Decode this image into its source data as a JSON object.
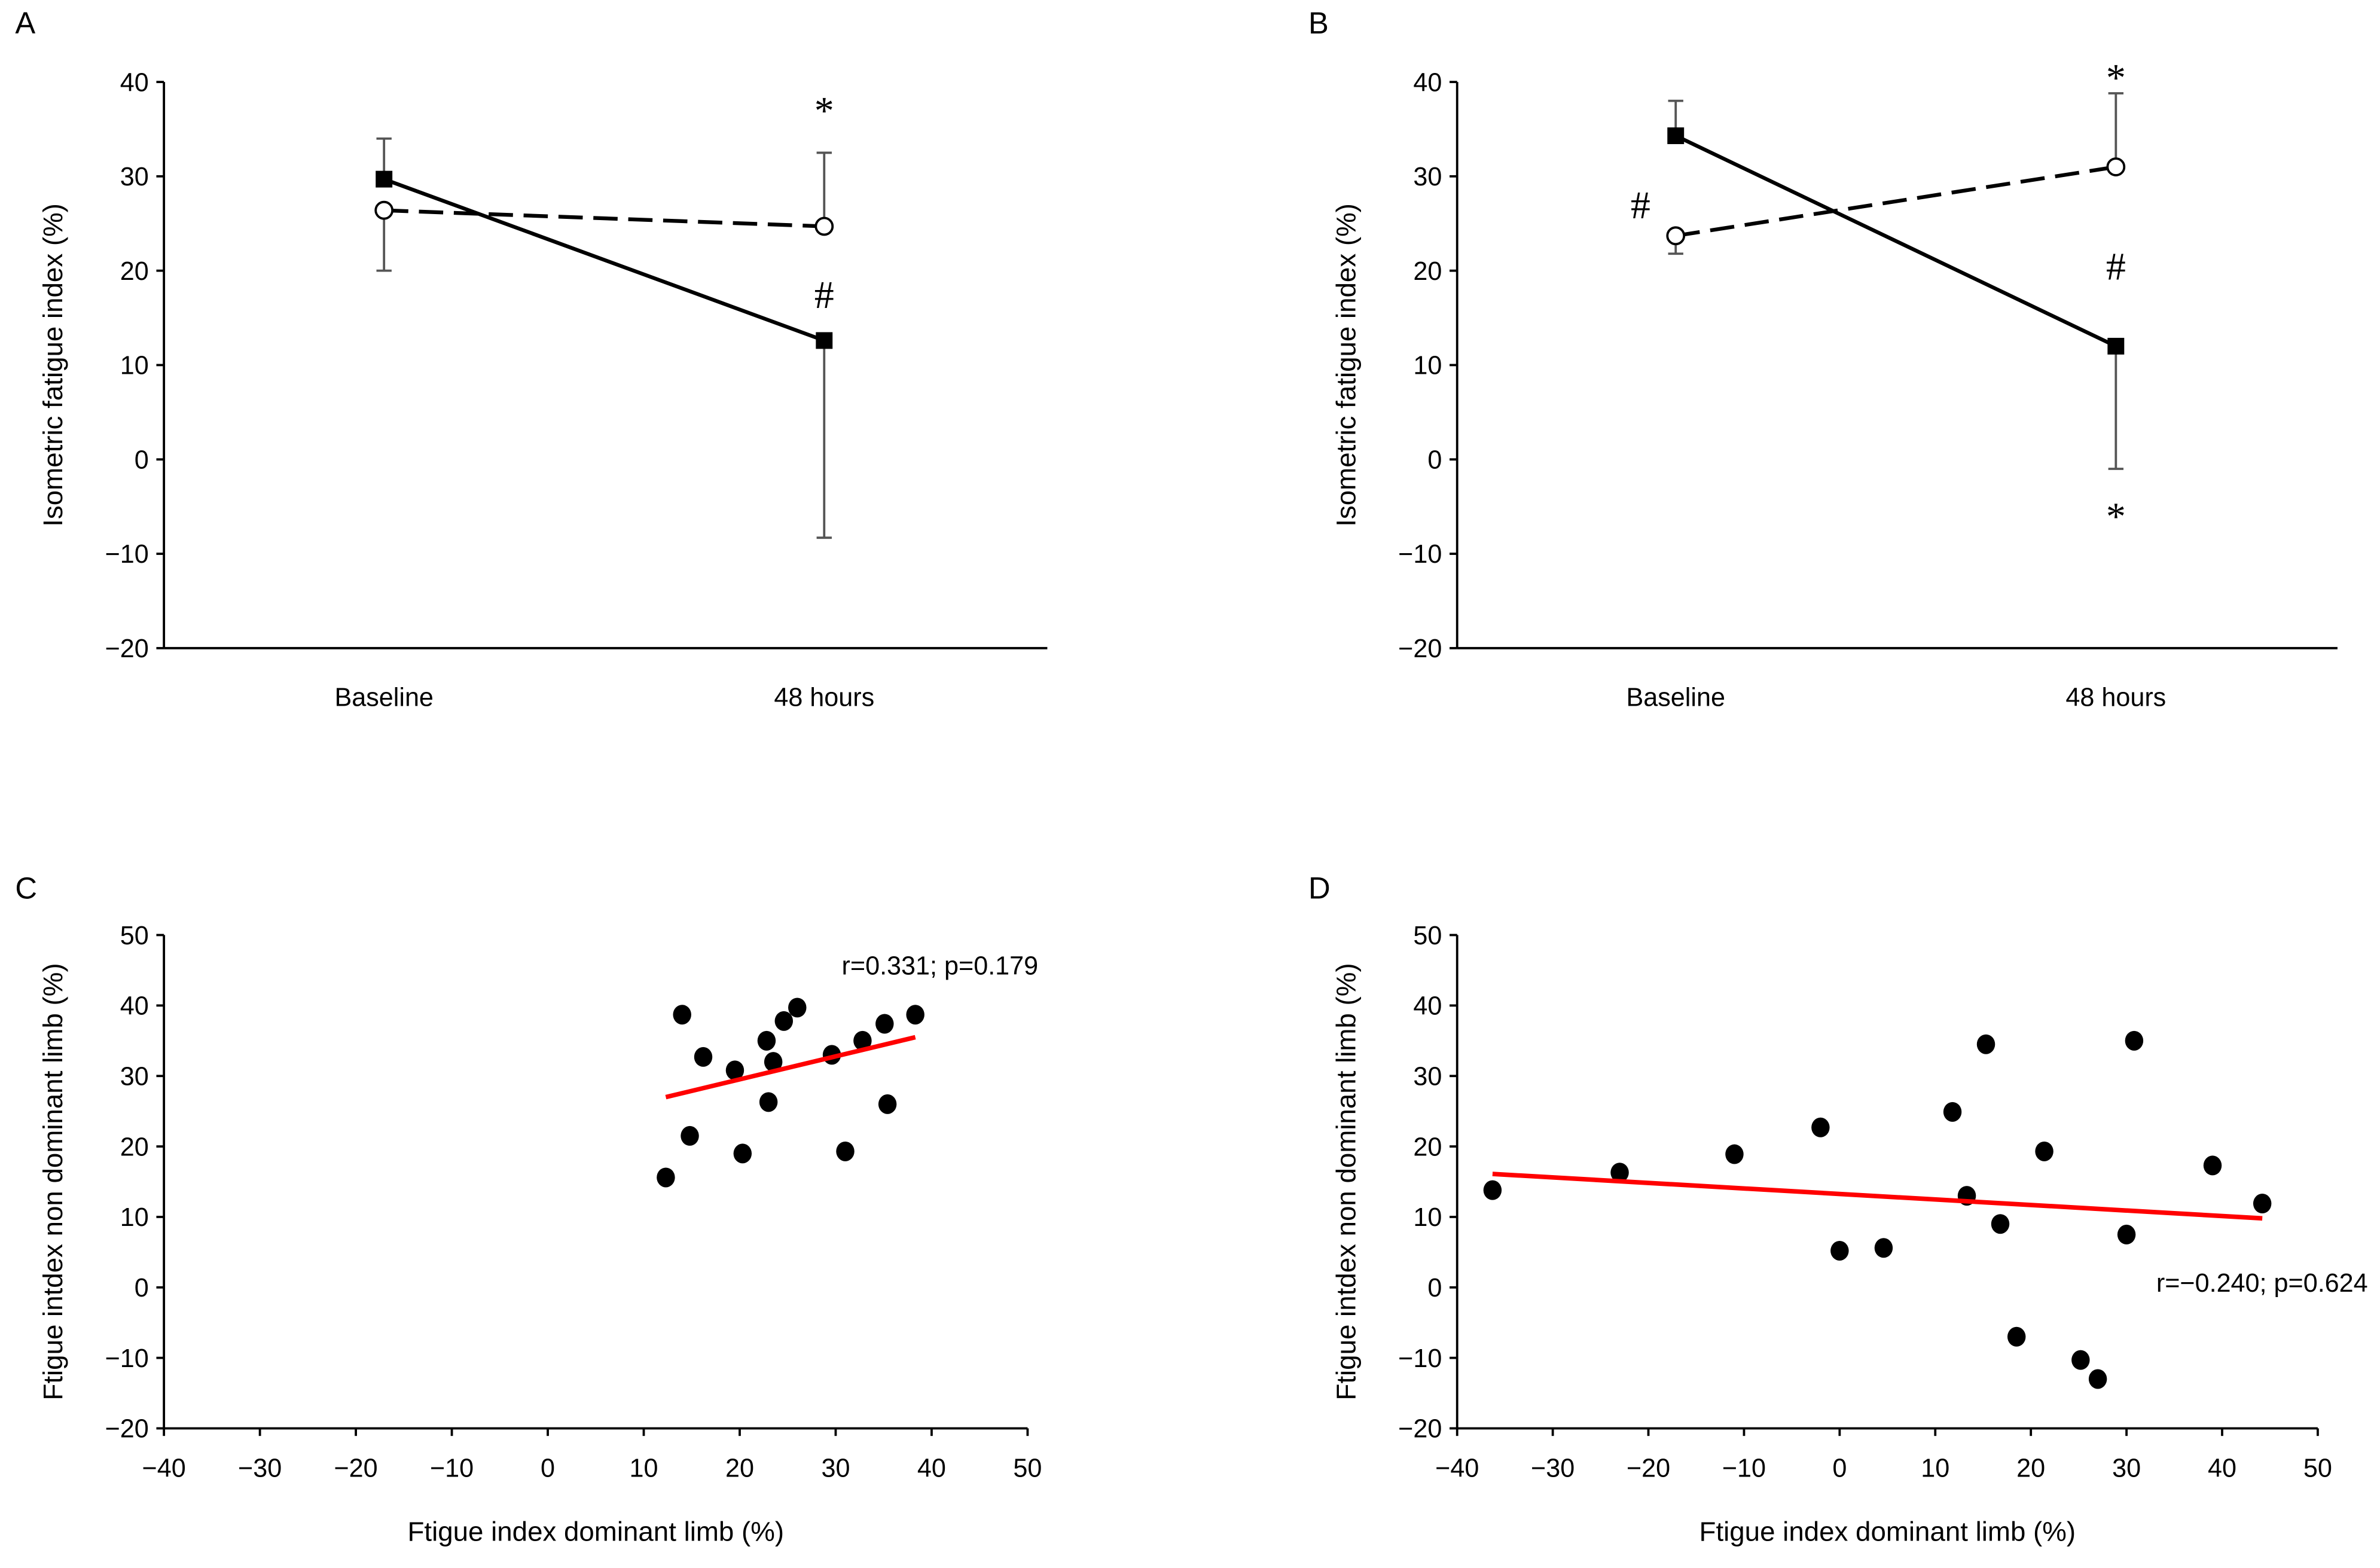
{
  "chart_data": [
    {
      "panel": "A",
      "type": "line",
      "ylabel": "Isometric fatigue index (%)",
      "xlabel": "",
      "categories": [
        "Baseline",
        "48 hours"
      ],
      "ylim": [
        -20,
        40
      ],
      "yticks": [
        -20,
        -10,
        0,
        10,
        20,
        30,
        40
      ],
      "series": [
        {
          "name": "solid-square",
          "style": "solid",
          "marker": "square-filled",
          "values": [
            29.7,
            12.6
          ],
          "error": [
            [
              null,
              34.0
            ],
            [
              -8.3,
              null
            ]
          ]
        },
        {
          "name": "dashed-circle",
          "style": "dashed",
          "marker": "circle-open",
          "values": [
            26.4,
            24.7
          ],
          "error": [
            [
              20.0,
              null
            ],
            [
              null,
              32.5
            ]
          ]
        }
      ],
      "annotations": [
        {
          "text": "*",
          "cat": 1,
          "y": 37
        },
        {
          "text": "#",
          "cat": 1,
          "y": 17.5
        }
      ]
    },
    {
      "panel": "B",
      "type": "line",
      "ylabel": "Isometric fatigue index (%)",
      "xlabel": "",
      "categories": [
        "Baseline",
        "48 hours"
      ],
      "ylim": [
        -20,
        40
      ],
      "yticks": [
        -20,
        -10,
        0,
        10,
        20,
        30,
        40
      ],
      "series": [
        {
          "name": "solid-square",
          "style": "solid",
          "marker": "square-filled",
          "values": [
            34.3,
            12.0
          ],
          "error": [
            [
              null,
              38.0
            ],
            [
              -1.0,
              null
            ]
          ]
        },
        {
          "name": "dashed-circle",
          "style": "dashed",
          "marker": "circle-open",
          "values": [
            23.7,
            31.0
          ],
          "error": [
            [
              21.8,
              null
            ],
            [
              null,
              38.8
            ]
          ]
        }
      ],
      "annotations": [
        {
          "text": "#",
          "cat": -0.08,
          "y": 27
        },
        {
          "text": "*",
          "cat": 1,
          "y": 40.5
        },
        {
          "text": "#",
          "cat": 1,
          "y": 20.5
        },
        {
          "text": "*",
          "cat": 1,
          "y": -6
        }
      ]
    },
    {
      "panel": "C",
      "type": "scatter",
      "xlabel": "Ftigue index dominant limb (%)",
      "ylabel": "Ftigue intdex non dominant limb (%)",
      "xlim": [
        -40,
        50
      ],
      "ylim": [
        -20,
        50
      ],
      "xticks": [
        -40,
        -30,
        -20,
        -10,
        0,
        10,
        20,
        30,
        40,
        50
      ],
      "yticks": [
        -20,
        -10,
        0,
        10,
        20,
        30,
        40,
        50
      ],
      "points": [
        [
          12.3,
          15.6
        ],
        [
          14,
          38.7
        ],
        [
          14.8,
          21.5
        ],
        [
          16.2,
          32.7
        ],
        [
          19.5,
          30.8
        ],
        [
          20.3,
          19
        ],
        [
          22.8,
          35
        ],
        [
          23,
          26.3
        ],
        [
          23.5,
          32
        ],
        [
          24.6,
          37.8
        ],
        [
          26,
          39.7
        ],
        [
          29.6,
          33
        ],
        [
          31,
          19.3
        ],
        [
          32.8,
          35
        ],
        [
          35.1,
          37.4
        ],
        [
          35.4,
          26
        ],
        [
          38.3,
          38.7
        ]
      ],
      "fit": [
        [
          12.3,
          27.0
        ],
        [
          38.3,
          35.5
        ]
      ],
      "fit_color": "#ff0000",
      "annotation": "r=0.331; p=0.179"
    },
    {
      "panel": "D",
      "type": "scatter",
      "xlabel": "Ftigue index dominant limb (%)",
      "ylabel": "Ftigue intdex non dominant limb (%)",
      "xlim": [
        -40,
        50
      ],
      "ylim": [
        -20,
        50
      ],
      "xticks": [
        -40,
        -30,
        -20,
        -10,
        0,
        10,
        20,
        30,
        40,
        50
      ],
      "yticks": [
        -20,
        -10,
        0,
        10,
        20,
        30,
        40,
        50
      ],
      "points": [
        [
          -36.3,
          13.8
        ],
        [
          -23,
          16.3
        ],
        [
          -11,
          18.9
        ],
        [
          -2,
          22.7
        ],
        [
          0,
          5.2
        ],
        [
          4.6,
          5.6
        ],
        [
          11.8,
          24.9
        ],
        [
          13.3,
          13
        ],
        [
          15.3,
          34.5
        ],
        [
          16.8,
          9
        ],
        [
          18.5,
          -7
        ],
        [
          21.4,
          19.3
        ],
        [
          25.2,
          -10.3
        ],
        [
          27,
          -13
        ],
        [
          30,
          7.5
        ],
        [
          30.8,
          35
        ],
        [
          39,
          17.3
        ],
        [
          44.2,
          11.9
        ]
      ],
      "fit": [
        [
          -36.3,
          16.1
        ],
        [
          44.2,
          9.8
        ]
      ],
      "fit_color": "#ff0000",
      "annotation": "r=−0.240; p=0.624"
    }
  ]
}
